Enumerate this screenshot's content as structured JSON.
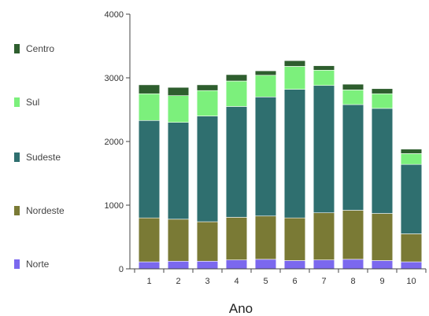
{
  "chart_data": {
    "type": "bar",
    "stacked": true,
    "categories": [
      "1",
      "2",
      "3",
      "4",
      "5",
      "6",
      "7",
      "8",
      "9",
      "10"
    ],
    "series": [
      {
        "name": "Norte",
        "color": "#7b68ee",
        "values": [
          110,
          120,
          120,
          140,
          150,
          130,
          140,
          150,
          130,
          110
        ]
      },
      {
        "name": "Nordeste",
        "color": "#7a7a35",
        "values": [
          690,
          660,
          620,
          670,
          680,
          670,
          740,
          770,
          740,
          440
        ]
      },
      {
        "name": "Sudeste",
        "color": "#2f6f6f",
        "values": [
          1530,
          1520,
          1660,
          1740,
          1870,
          2020,
          2000,
          1660,
          1650,
          1090
        ]
      },
      {
        "name": "Sul",
        "color": "#7cf07c",
        "values": [
          420,
          420,
          400,
          400,
          340,
          360,
          240,
          230,
          230,
          170
        ]
      },
      {
        "name": "Centro",
        "color": "#2e5e2e",
        "values": [
          140,
          130,
          90,
          100,
          70,
          90,
          70,
          90,
          80,
          70
        ]
      }
    ],
    "xlabel": "Ano",
    "ylabel": "",
    "ylim": [
      0,
      4000
    ],
    "yticks": [
      "0",
      "1000",
      "2000",
      "3000",
      "4000"
    ],
    "legend_position": "left",
    "grid": false
  }
}
